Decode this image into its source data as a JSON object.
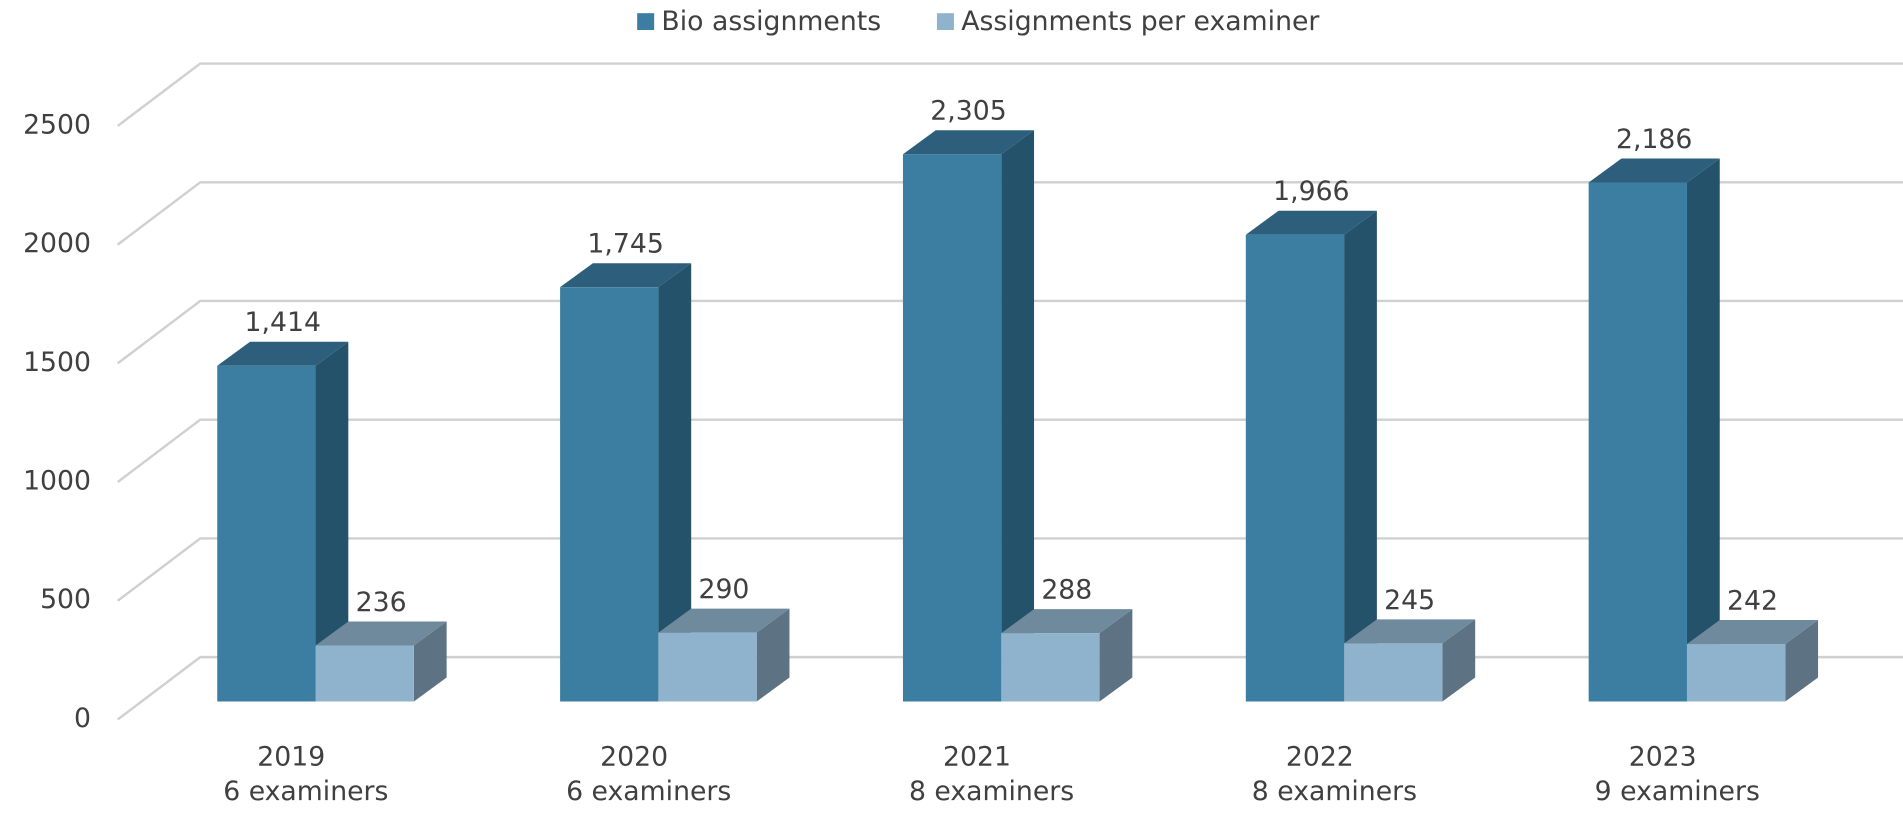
{
  "chart_data": {
    "type": "bar3d",
    "categories": [
      "2019",
      "2020",
      "2021",
      "2022",
      "2023"
    ],
    "examiners": [
      "6 examiners",
      "6 examiners",
      "8 examiners",
      "8 examiners",
      "9 examiners"
    ],
    "series": [
      {
        "name": "Bio assignments",
        "color": "#3b7ea1",
        "top_color": "#2d5f7d",
        "side_color": "#24526a",
        "values": [
          1414,
          1745,
          2305,
          1966,
          2186
        ],
        "value_labels": [
          "1,414",
          "1,745",
          "2,305",
          "1,966",
          "2,186"
        ]
      },
      {
        "name": "Assignments per examiner",
        "color": "#8fb3cc",
        "top_color": "#6f8a9c",
        "side_color": "#5d7282",
        "values": [
          236,
          290,
          288,
          245,
          242
        ]
      }
    ],
    "ylim": [
      0,
      2500
    ],
    "yticks": [
      0,
      500,
      1000,
      1500,
      2000,
      2500
    ],
    "grid": true,
    "legend": "top"
  }
}
